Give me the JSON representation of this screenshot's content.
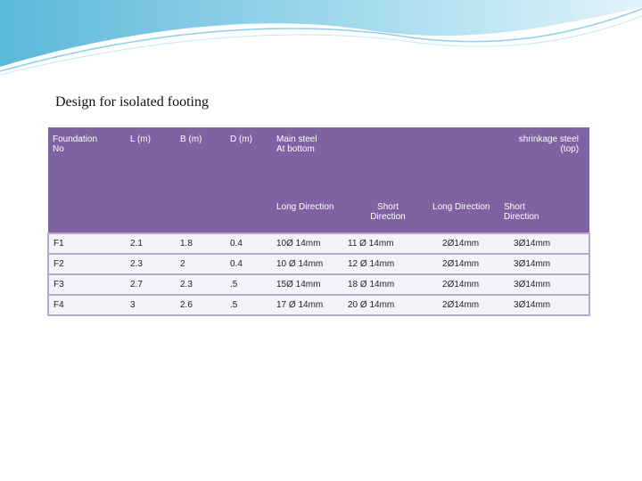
{
  "title": "Design for isolated footing",
  "table": {
    "header_top": [
      "Foundation\n No",
      "L (m)",
      "B (m)",
      "D (m)",
      "Main steel\nAt bottom",
      "shrinkage steel\n (top)"
    ],
    "header_sub": [
      "Long Direction",
      "Short\nDirection",
      "Long Direction",
      "Short\nDirection"
    ],
    "rows": [
      [
        "F1",
        "2.1",
        "1.8",
        "0.4",
        "10Ø 14mm",
        "11 Ø 14mm",
        "2Ø14mm",
        "3Ø14mm"
      ],
      [
        "F2",
        "2.3",
        "2",
        "0.4",
        "10 Ø 14mm",
        "12 Ø 14mm",
        "2Ø14mm",
        "3Ø14mm"
      ],
      [
        "F3",
        "2.7",
        "2.3",
        ".5",
        "15Ø 14mm",
        "18 Ø 14mm",
        "2Ø14mm",
        "3Ø14mm"
      ],
      [
        "F4",
        "3",
        "2.6",
        ".5",
        "17 Ø 14mm",
        "20 Ø 14mm",
        "2Ø14mm",
        "3Ø14mm"
      ]
    ]
  }
}
